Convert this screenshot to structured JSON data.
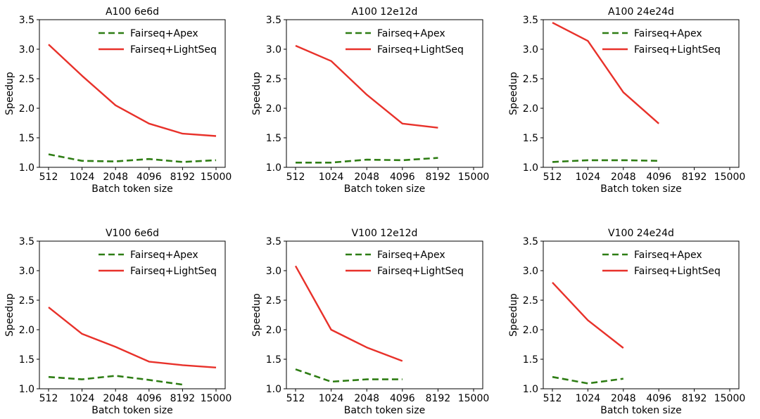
{
  "chart_data": [
    {
      "type": "line",
      "title": "A100 6e6d",
      "xlabel": "Batch token size",
      "ylabel": "Speedup",
      "categories": [
        "512",
        "1024",
        "2048",
        "4096",
        "8192",
        "15000"
      ],
      "ylim": [
        1.0,
        3.5
      ],
      "yticks": [
        "1.0",
        "1.5",
        "2.0",
        "2.5",
        "3.0",
        "3.5"
      ],
      "legend": "top-right",
      "series": [
        {
          "name": "Fairseq+Apex",
          "color": "#2e7d14",
          "style": "dashed",
          "values": [
            1.22,
            1.11,
            1.1,
            1.14,
            1.09,
            1.12
          ]
        },
        {
          "name": "Fairseq+LightSeq",
          "color": "#e8312a",
          "style": "solid",
          "values": [
            3.08,
            2.55,
            2.05,
            1.74,
            1.57,
            1.53
          ]
        }
      ]
    },
    {
      "type": "line",
      "title": "A100 12e12d",
      "xlabel": "Batch token size",
      "ylabel": "Speedup",
      "categories": [
        "512",
        "1024",
        "2048",
        "4096",
        "8192",
        "15000"
      ],
      "ylim": [
        1.0,
        3.5
      ],
      "yticks": [
        "1.0",
        "1.5",
        "2.0",
        "2.5",
        "3.0",
        "3.5"
      ],
      "legend": "top-right",
      "series": [
        {
          "name": "Fairseq+Apex",
          "color": "#2e7d14",
          "style": "dashed",
          "values": [
            1.08,
            1.08,
            1.13,
            1.12,
            1.16,
            null
          ]
        },
        {
          "name": "Fairseq+LightSeq",
          "color": "#e8312a",
          "style": "solid",
          "values": [
            3.06,
            2.8,
            2.23,
            1.74,
            1.67,
            null
          ]
        }
      ]
    },
    {
      "type": "line",
      "title": "A100 24e24d",
      "xlabel": "Batch token size",
      "ylabel": "Speedup",
      "categories": [
        "512",
        "1024",
        "2048",
        "4096",
        "8192",
        "15000"
      ],
      "ylim": [
        1.0,
        3.5
      ],
      "yticks": [
        "1.0",
        "1.5",
        "2.0",
        "2.5",
        "3.0",
        "3.5"
      ],
      "legend": "top-right",
      "series": [
        {
          "name": "Fairseq+Apex",
          "color": "#2e7d14",
          "style": "dashed",
          "values": [
            1.09,
            1.12,
            1.12,
            1.11,
            null,
            null
          ]
        },
        {
          "name": "Fairseq+LightSeq",
          "color": "#e8312a",
          "style": "solid",
          "values": [
            3.45,
            3.14,
            2.27,
            1.74,
            null,
            null
          ]
        }
      ]
    },
    {
      "type": "line",
      "title": "V100 6e6d",
      "xlabel": "Batch token size",
      "ylabel": "Speedup",
      "categories": [
        "512",
        "1024",
        "2048",
        "4096",
        "8192",
        "15000"
      ],
      "ylim": [
        1.0,
        3.5
      ],
      "yticks": [
        "1.0",
        "1.5",
        "2.0",
        "2.5",
        "3.0",
        "3.5"
      ],
      "legend": "top-right",
      "series": [
        {
          "name": "Fairseq+Apex",
          "color": "#2e7d14",
          "style": "dashed",
          "values": [
            1.2,
            1.16,
            1.22,
            1.15,
            1.07,
            null
          ]
        },
        {
          "name": "Fairseq+LightSeq",
          "color": "#e8312a",
          "style": "solid",
          "values": [
            2.38,
            1.93,
            1.71,
            1.46,
            1.4,
            1.36
          ]
        }
      ]
    },
    {
      "type": "line",
      "title": "V100 12e12d",
      "xlabel": "Batch token size",
      "ylabel": "Speedup",
      "categories": [
        "512",
        "1024",
        "2048",
        "4096",
        "8192",
        "15000"
      ],
      "ylim": [
        1.0,
        3.5
      ],
      "yticks": [
        "1.0",
        "1.5",
        "2.0",
        "2.5",
        "3.0",
        "3.5"
      ],
      "legend": "top-right",
      "series": [
        {
          "name": "Fairseq+Apex",
          "color": "#2e7d14",
          "style": "dashed",
          "values": [
            1.33,
            1.12,
            1.16,
            1.16,
            null,
            null
          ]
        },
        {
          "name": "Fairseq+LightSeq",
          "color": "#e8312a",
          "style": "solid",
          "values": [
            3.08,
            2.0,
            1.7,
            1.47,
            null,
            null
          ]
        }
      ]
    },
    {
      "type": "line",
      "title": "V100 24e24d",
      "xlabel": "Batch token size",
      "ylabel": "Speedup",
      "categories": [
        "512",
        "1024",
        "2048",
        "4096",
        "8192",
        "15000"
      ],
      "ylim": [
        1.0,
        3.5
      ],
      "yticks": [
        "1.0",
        "1.5",
        "2.0",
        "2.5",
        "3.0",
        "3.5"
      ],
      "legend": "top-right",
      "series": [
        {
          "name": "Fairseq+Apex",
          "color": "#2e7d14",
          "style": "dashed",
          "values": [
            1.2,
            1.09,
            1.17,
            null,
            null,
            null
          ]
        },
        {
          "name": "Fairseq+LightSeq",
          "color": "#e8312a",
          "style": "solid",
          "values": [
            2.8,
            2.16,
            1.69,
            null,
            null,
            null
          ]
        }
      ]
    }
  ]
}
